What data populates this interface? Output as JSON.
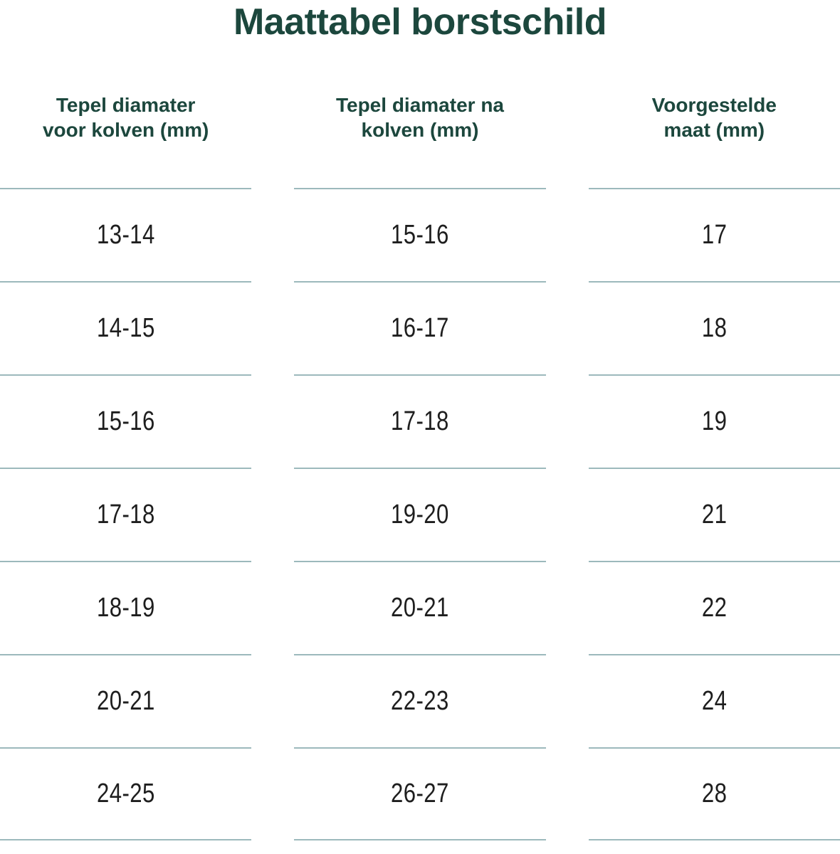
{
  "page": {
    "title": "Maattabel borstschild"
  },
  "colors": {
    "heading": "#1c473d",
    "text": "#1e1e1e",
    "line": "#9cb9bc",
    "bg": "#ffffff"
  },
  "table": {
    "headers": [
      {
        "line1": "Tepel diamater",
        "line2": "voor kolven (mm)"
      },
      {
        "line1": "Tepel diamater na",
        "line2": "kolven (mm)"
      },
      {
        "line1": "Voorgestelde",
        "line2": "maat (mm)"
      }
    ],
    "rows": [
      [
        "13-14",
        "15-16",
        "17"
      ],
      [
        "14-15",
        "16-17",
        "18"
      ],
      [
        "15-16",
        "17-18",
        "19"
      ],
      [
        "17-18",
        "19-20",
        "21"
      ],
      [
        "18-19",
        "20-21",
        "22"
      ],
      [
        "20-21",
        "22-23",
        "24"
      ],
      [
        "24-25",
        "26-27",
        "28"
      ]
    ]
  },
  "chart_data": {
    "type": "table",
    "title": "Maattabel borstschild",
    "columns": [
      "Tepel diamater voor kolven (mm)",
      "Tepel diamater na kolven (mm)",
      "Voorgestelde maat (mm)"
    ],
    "rows": [
      [
        "13-14",
        "15-16",
        "17"
      ],
      [
        "14-15",
        "16-17",
        "18"
      ],
      [
        "15-16",
        "17-18",
        "19"
      ],
      [
        "17-18",
        "19-20",
        "21"
      ],
      [
        "18-19",
        "20-21",
        "22"
      ],
      [
        "20-21",
        "22-23",
        "24"
      ],
      [
        "24-25",
        "26-27",
        "28"
      ]
    ],
    "layout_hints": {
      "grid": "horizontal separators only, segmented per column",
      "header_color": "#1c473d",
      "separator_color": "#9cb9bc"
    }
  }
}
